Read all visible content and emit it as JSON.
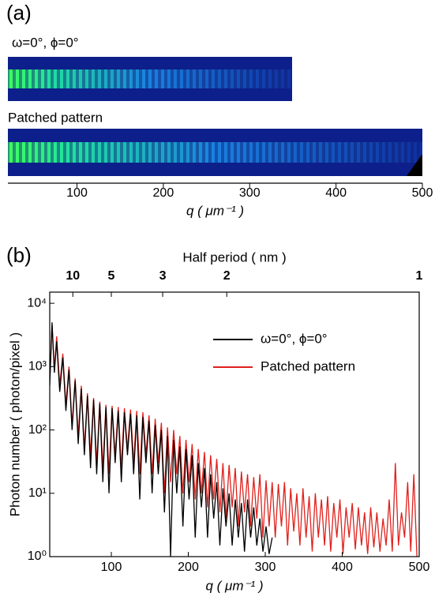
{
  "chart_data": [
    {
      "type": "image-strips",
      "panel_label": "(a)",
      "strips": [
        {
          "label": "ω=0°, ϕ=0°"
        },
        {
          "label": "Patched pattern"
        }
      ],
      "xlim": [
        20,
        500
      ],
      "xticks": [
        100,
        200,
        300,
        400,
        500
      ],
      "x_label": "q ( μm⁻¹ )"
    },
    {
      "type": "line",
      "panel_label": "(b)",
      "log_y": true,
      "x_label": "q ( μm⁻¹ )",
      "y_label": "Photon number ( photon/pixel )",
      "x2_label": "Half period ( nm )",
      "xlim": [
        20,
        500
      ],
      "xticks": [
        100,
        200,
        300,
        400,
        500
      ],
      "x2ticks": [
        {
          "value": 50,
          "label": "10"
        },
        {
          "value": 100,
          "label": "5"
        },
        {
          "value": 166.7,
          "label": "3"
        },
        {
          "value": 250,
          "label": "2"
        },
        {
          "value": 500,
          "label": "1"
        }
      ],
      "ylim": [
        1,
        15000
      ],
      "yticks": [
        {
          "value": 1,
          "label": "10⁰"
        },
        {
          "value": 10,
          "label": "10¹"
        },
        {
          "value": 100,
          "label": "10²"
        },
        {
          "value": 1000,
          "label": "10³"
        },
        {
          "value": 10000,
          "label": "10⁴"
        }
      ],
      "legend": "upper right",
      "series": [
        {
          "name": "ω=0°, ϕ=0°",
          "color": "#000000",
          "x": [
            20,
            23,
            26,
            29,
            33,
            37,
            41,
            45,
            49,
            53,
            57,
            61,
            65,
            69,
            73,
            77,
            81,
            85,
            89,
            93,
            97,
            101,
            105,
            109,
            113,
            117,
            121,
            125,
            129,
            133,
            137,
            141,
            145,
            149,
            153,
            157,
            161,
            165,
            169,
            173,
            177,
            181,
            185,
            189,
            193,
            197,
            201,
            205,
            209,
            213,
            217,
            221,
            225,
            229,
            233,
            237,
            241,
            245,
            249,
            253,
            257,
            261,
            265,
            269,
            273,
            277,
            281,
            285,
            289,
            293,
            297,
            301,
            305,
            309
          ],
          "values": [
            500,
            5000,
            800,
            2500,
            400,
            1400,
            200,
            900,
            100,
            600,
            60,
            450,
            40,
            350,
            25,
            300,
            20,
            260,
            15,
            230,
            10,
            220,
            30,
            200,
            15,
            190,
            40,
            180,
            20,
            170,
            8,
            160,
            30,
            140,
            10,
            120,
            20,
            100,
            5,
            80,
            1,
            70,
            10,
            55,
            3,
            50,
            8,
            40,
            2,
            30,
            6,
            25,
            2,
            20,
            4,
            15,
            1.5,
            12,
            3,
            10,
            1.5,
            8,
            2,
            7,
            1.2,
            8,
            2,
            6,
            1.5,
            4,
            1.2,
            3,
            1.1,
            2
          ]
        },
        {
          "name": "Patched pattern",
          "color": "#e0201b",
          "x": [
            20,
            23,
            26,
            29,
            33,
            37,
            41,
            45,
            49,
            53,
            57,
            61,
            65,
            69,
            73,
            77,
            81,
            85,
            89,
            93,
            97,
            101,
            105,
            109,
            113,
            117,
            121,
            125,
            129,
            133,
            137,
            141,
            145,
            149,
            153,
            157,
            161,
            165,
            169,
            173,
            177,
            181,
            185,
            189,
            193,
            197,
            201,
            205,
            209,
            213,
            217,
            221,
            225,
            229,
            233,
            237,
            241,
            245,
            249,
            253,
            257,
            261,
            265,
            269,
            273,
            277,
            281,
            285,
            289,
            293,
            297,
            301,
            305,
            309,
            313,
            317,
            321,
            325,
            329,
            333,
            337,
            341,
            345,
            349,
            353,
            357,
            361,
            365,
            369,
            373,
            377,
            381,
            385,
            389,
            393,
            397,
            401,
            405,
            409,
            413,
            417,
            421,
            425,
            429,
            433,
            437,
            441,
            445,
            449,
            453,
            457,
            461,
            465,
            469,
            473,
            477,
            481,
            485,
            489,
            493,
            497
          ],
          "values": [
            600,
            4500,
            900,
            3000,
            500,
            1600,
            250,
            1000,
            120,
            650,
            80,
            500,
            50,
            380,
            40,
            320,
            30,
            280,
            25,
            250,
            20,
            240,
            40,
            230,
            25,
            220,
            50,
            210,
            30,
            200,
            20,
            190,
            40,
            170,
            20,
            150,
            30,
            130,
            10,
            110,
            15,
            100,
            20,
            80,
            10,
            70,
            15,
            60,
            8,
            50,
            10,
            45,
            6,
            40,
            8,
            35,
            5,
            30,
            4,
            28,
            6,
            25,
            3,
            22,
            5,
            20,
            3,
            18,
            4,
            20,
            2,
            16,
            3,
            15,
            2,
            14,
            3,
            15,
            1.5,
            12,
            2.5,
            10,
            1.5,
            12,
            2,
            9,
            1.2,
            10,
            2,
            8,
            1.5,
            9,
            1.2,
            7,
            2,
            8,
            1.1,
            6,
            2,
            7,
            1.3,
            6,
            1.5,
            5,
            1.1,
            6,
            1.4,
            5,
            1.2,
            4,
            1.5,
            8,
            1.2,
            30,
            1.5,
            5,
            2,
            15,
            1.2,
            20,
            1
          ]
        }
      ]
    }
  ]
}
